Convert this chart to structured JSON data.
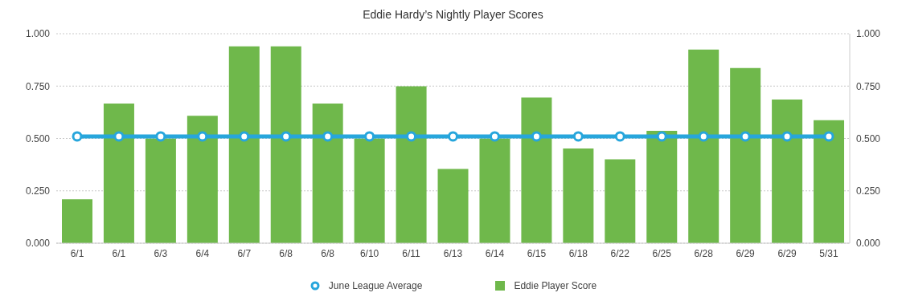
{
  "chart_data": {
    "type": "bar",
    "title": "Eddie Hardy’s Nightly Player Scores",
    "categories": [
      "6/1",
      "6/1",
      "6/3",
      "6/4",
      "6/7",
      "6/8",
      "6/8",
      "6/10",
      "6/11",
      "6/13",
      "6/14",
      "6/15",
      "6/18",
      "6/22",
      "6/25",
      "6/28",
      "6/29",
      "6/29",
      "5/31"
    ],
    "series": [
      {
        "name": "June League Average",
        "type": "line",
        "color": "#27a6dc",
        "values": [
          0.51,
          0.51,
          0.51,
          0.51,
          0.51,
          0.51,
          0.51,
          0.51,
          0.51,
          0.51,
          0.51,
          0.51,
          0.51,
          0.51,
          0.51,
          0.51,
          0.51,
          0.51,
          0.51
        ]
      },
      {
        "name": "Eddie Player Score",
        "color": "#6fb84b",
        "values": [
          0.21,
          0.667,
          0.5,
          0.608,
          0.94,
          0.94,
          0.667,
          0.5,
          0.749,
          0.354,
          0.5,
          0.695,
          0.452,
          0.4,
          0.536,
          0.924,
          0.836,
          0.686,
          0.587
        ]
      }
    ],
    "ylim": [
      0,
      1
    ],
    "yticks": [
      {
        "value": 0,
        "label": "0.000"
      },
      {
        "value": 0.25,
        "label": "0.250"
      },
      {
        "value": 0.5,
        "label": "0.500"
      },
      {
        "value": 0.75,
        "label": "0.750"
      },
      {
        "value": 1,
        "label": "1.000"
      }
    ],
    "y2lim": [
      0,
      1
    ],
    "y2ticks": [
      {
        "value": 0,
        "label": "0.000"
      },
      {
        "value": 0.25,
        "label": "0.250"
      },
      {
        "value": 0.5,
        "label": "0.500"
      },
      {
        "value": 0.75,
        "label": "0.750"
      },
      {
        "value": 1,
        "label": "1.000"
      }
    ],
    "grid": "y",
    "legend": "bottom",
    "marker": "circle",
    "line_style": "solid"
  }
}
